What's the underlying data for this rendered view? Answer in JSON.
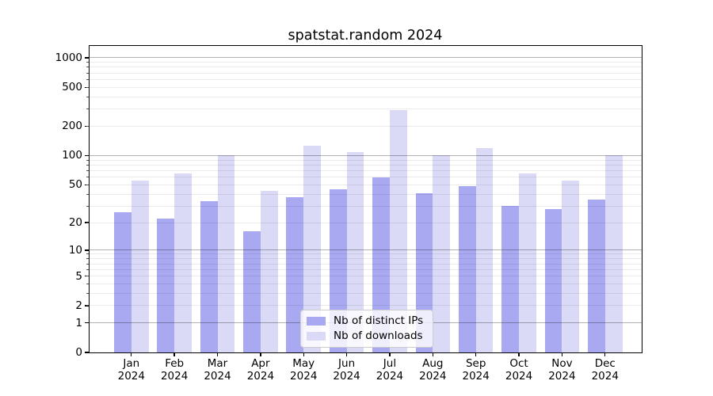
{
  "chart_data": {
    "type": "bar",
    "title": "spatstat.random 2024",
    "categories": [
      "Jan",
      "Feb",
      "Mar",
      "Apr",
      "May",
      "Jun",
      "Jul",
      "Aug",
      "Sep",
      "Oct",
      "Nov",
      "Dec"
    ],
    "x_sublabel": "2024",
    "series": [
      {
        "name": "Nb of distinct IPs",
        "color": "#a9a9f2",
        "values": [
          26,
          22,
          34,
          16,
          37,
          45,
          60,
          41,
          48,
          30,
          28,
          35
        ]
      },
      {
        "name": "Nb of downloads",
        "color": "#dadaf7",
        "values": [
          55,
          66,
          100,
          43,
          126,
          108,
          293,
          100,
          120,
          65,
          55,
          100
        ]
      }
    ],
    "y_axis": {
      "scale": "log1p",
      "ticks": [
        0,
        1,
        2,
        5,
        10,
        20,
        50,
        100,
        200,
        500,
        1000
      ],
      "max": 1320,
      "major_gridlines": [
        1,
        10,
        100,
        1000
      ],
      "minor_gridlines": [
        2,
        3,
        4,
        5,
        6,
        7,
        8,
        9,
        20,
        30,
        40,
        50,
        60,
        70,
        80,
        90,
        200,
        300,
        400,
        500,
        600,
        700,
        800,
        900
      ]
    },
    "grid": true,
    "legend_position": "inside-bottom-center"
  },
  "colors": {
    "major_grid": "rgba(0,0,0,0.30)",
    "minor_grid": "rgba(0,0,0,0.08)",
    "axis": "#000000",
    "legend_border": "#cccccc",
    "legend_bg": "rgba(255,255,255,0.8)"
  }
}
